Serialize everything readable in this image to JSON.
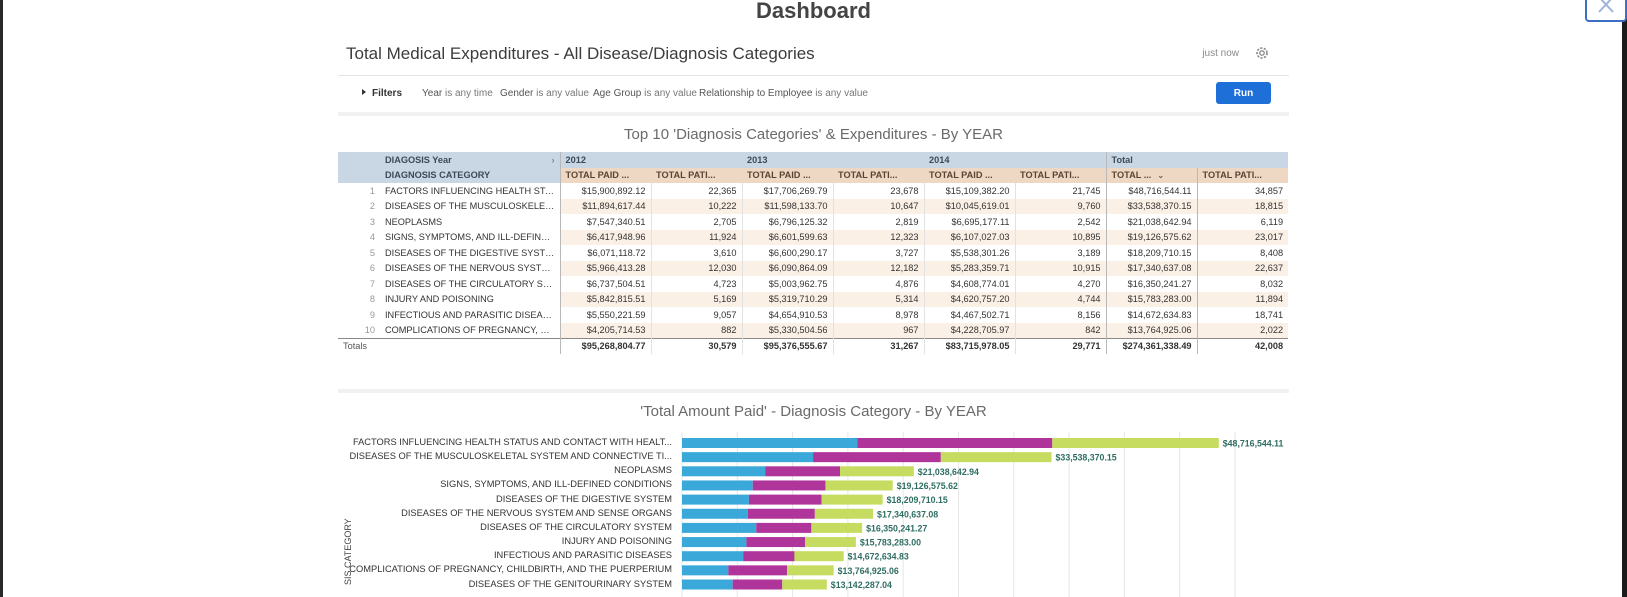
{
  "page_title": "Dashboard",
  "tile": {
    "title": "Total Medical Expenditures - All Disease/Diagnosis Categories",
    "updated": "just now"
  },
  "filters": {
    "label": "Filters",
    "items": [
      {
        "field": "Year",
        "value": "is any time"
      },
      {
        "field": "Gender",
        "value": "is any value"
      },
      {
        "field": "Age Group",
        "value": "is any value"
      },
      {
        "field": "Relationship to Employee",
        "value": "is any value"
      }
    ],
    "run_label": "Run"
  },
  "table": {
    "title": "Top 10 'Diagnosis Categories' & Expenditures - By YEAR",
    "pivot_label": "DIAGOSIS Year",
    "row_label": "DIAGNOSIS CATEGORY",
    "years": [
      "2012",
      "2013",
      "2014",
      "Total"
    ],
    "measures": [
      "TOTAL PAID ...",
      "TOTAL PATI...",
      "TOTAL PAID ...",
      "TOTAL PATI...",
      "TOTAL PAID ...",
      "TOTAL PATI...",
      "TOTAL ...",
      "TOTAL PATI..."
    ],
    "rows": [
      {
        "n": "1",
        "category": "FACTORS INFLUENCING HEALTH STA...",
        "values": [
          "$15,900,892.12",
          "22,365",
          "$17,706,269.79",
          "23,678",
          "$15,109,382.20",
          "21,745",
          "$48,716,544.11",
          "34,857"
        ]
      },
      {
        "n": "2",
        "category": "DISEASES OF THE MUSCULOSKELET...",
        "values": [
          "$11,894,617.44",
          "10,222",
          "$11,598,133.70",
          "10,647",
          "$10,045,619.01",
          "9,760",
          "$33,538,370.15",
          "18,815"
        ]
      },
      {
        "n": "3",
        "category": "NEOPLASMS",
        "values": [
          "$7,547,340.51",
          "2,705",
          "$6,796,125.32",
          "2,819",
          "$6,695,177.11",
          "2,542",
          "$21,038,642.94",
          "6,119"
        ]
      },
      {
        "n": "4",
        "category": "SIGNS, SYMPTOMS, AND ILL-DEFINE...",
        "values": [
          "$6,417,948.96",
          "11,924",
          "$6,601,599.63",
          "12,323",
          "$6,107,027.03",
          "10,895",
          "$19,126,575.62",
          "23,017"
        ]
      },
      {
        "n": "5",
        "category": "DISEASES OF THE DIGESTIVE SYSTEM",
        "values": [
          "$6,071,118.72",
          "3,610",
          "$6,600,290.17",
          "3,727",
          "$5,538,301.26",
          "3,189",
          "$18,209,710.15",
          "8,408"
        ]
      },
      {
        "n": "6",
        "category": "DISEASES OF THE NERVOUS SYSTE...",
        "values": [
          "$5,966,413.28",
          "12,030",
          "$6,090,864.09",
          "12,182",
          "$5,283,359.71",
          "10,915",
          "$17,340,637.08",
          "22,637"
        ]
      },
      {
        "n": "7",
        "category": "DISEASES OF THE CIRCULATORY SY...",
        "values": [
          "$6,737,504.51",
          "4,723",
          "$5,003,962.75",
          "4,876",
          "$4,608,774.01",
          "4,270",
          "$16,350,241.27",
          "8,032"
        ]
      },
      {
        "n": "8",
        "category": "INJURY AND POISONING",
        "values": [
          "$5,842,815.51",
          "5,169",
          "$5,319,710.29",
          "5,314",
          "$4,620,757.20",
          "4,744",
          "$15,783,283.00",
          "11,894"
        ]
      },
      {
        "n": "9",
        "category": "INFECTIOUS AND PARASITIC DISEAS...",
        "values": [
          "$5,550,221.59",
          "9,057",
          "$4,654,910.53",
          "8,978",
          "$4,467,502.71",
          "8,156",
          "$14,672,634.83",
          "18,741"
        ]
      },
      {
        "n": "10",
        "category": "COMPLICATIONS OF PREGNANCY, C...",
        "values": [
          "$4,205,714.53",
          "882",
          "$5,330,504.56",
          "967",
          "$4,228,705.97",
          "842",
          "$13,764,925.06",
          "2,022"
        ]
      }
    ],
    "totals_label": "Totals",
    "totals": [
      "$95,268,804.77",
      "30,579",
      "$95,376,555.67",
      "31,267",
      "$83,715,978.05",
      "29,771",
      "$274,361,338.49",
      "42,008"
    ]
  },
  "chart_data": {
    "type": "bar",
    "orientation": "horizontal",
    "stacked": true,
    "title": "'Total Amount Paid' - Diagnosis Category - By YEAR",
    "ylabel": "SIS CATEGORY",
    "categories": [
      "FACTORS INFLUENCING HEALTH STATUS AND CONTACT WITH HEALT...",
      "DISEASES OF THE MUSCULOSKELETAL SYSTEM AND CONNECTIVE TI...",
      "NEOPLASMS",
      "SIGNS, SYMPTOMS, AND ILL-DEFINED CONDITIONS",
      "DISEASES OF THE DIGESTIVE SYSTEM",
      "DISEASES OF THE NERVOUS SYSTEM AND SENSE ORGANS",
      "DISEASES OF THE CIRCULATORY SYSTEM",
      "INJURY AND POISONING",
      "INFECTIOUS AND PARASITIC DISEASES",
      "COMPLICATIONS OF PREGNANCY, CHILDBIRTH, AND THE PUERPERIUM",
      "DISEASES OF THE GENITOURINARY SYSTEM"
    ],
    "series": [
      {
        "color": "#3aa9d9",
        "values": [
          15900892.12,
          11894617.44,
          7547340.51,
          6417948.96,
          6071118.72,
          5966413.28,
          6737504.51,
          5842815.51,
          5550221.59,
          4205714.53,
          4600000
        ]
      },
      {
        "color": "#b0359b",
        "values": [
          17706269.79,
          11598133.7,
          6796125.32,
          6601599.63,
          6600290.17,
          6090864.09,
          5003962.75,
          5319710.29,
          4654910.53,
          5330504.56,
          4500000
        ]
      },
      {
        "color": "#c5dc60",
        "values": [
          15109382.2,
          10045619.01,
          6695177.11,
          6107027.03,
          5538301.26,
          5283359.71,
          4608774.01,
          4620757.2,
          4467502.71,
          4228705.97,
          4042287.04
        ]
      }
    ],
    "totals_labels": [
      "$48,716,544.11",
      "$33,538,370.15",
      "$21,038,642.94",
      "$19,126,575.62",
      "$18,209,710.15",
      "$17,340,637.08",
      "$16,350,241.27",
      "$15,783,283.00",
      "$14,672,634.83",
      "$13,764,925.06",
      "$13,142,287.04"
    ],
    "xlim": [
      0,
      55000000
    ],
    "grid": true
  },
  "colors": {
    "accent": "#1f6fd8",
    "header_blue": "#c9d6e3",
    "header_tan": "#eed8c4",
    "row_stripe": "#fbf0e6",
    "value_label": "#2f6e62"
  },
  "icons": {
    "close": "close-icon",
    "settings": "gear-icon",
    "expand": "chevron-right-icon",
    "sort": "chevron-down-icon",
    "filters": "triangle-right-icon"
  }
}
